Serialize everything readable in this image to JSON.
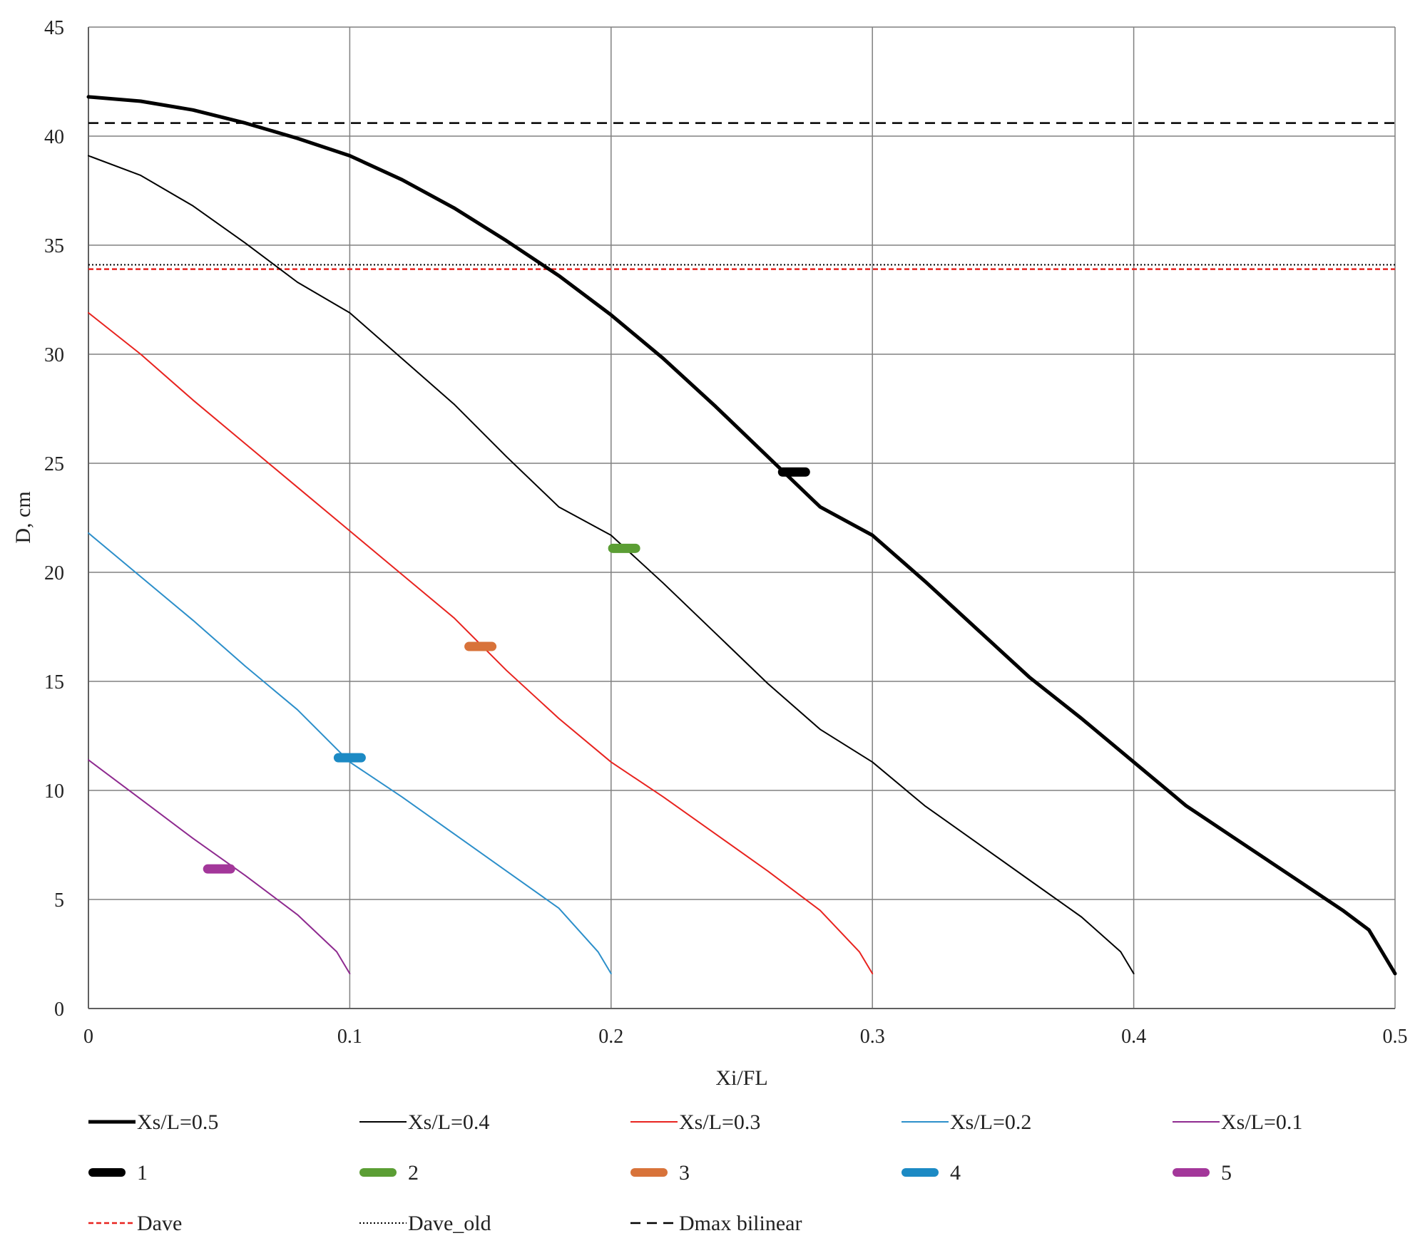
{
  "chart_data": {
    "type": "line",
    "title": "",
    "xlabel": "Xi/FL",
    "ylabel": "D, cm",
    "xlim": [
      0,
      0.5
    ],
    "ylim": [
      0,
      45
    ],
    "xticks": [
      "0",
      "0.1",
      "0.2",
      "0.3",
      "0.4",
      "0.5"
    ],
    "yticks": [
      "0",
      "5",
      "10",
      "15",
      "20",
      "25",
      "30",
      "35",
      "40",
      "45"
    ],
    "grid": true,
    "legend_position": "bottom",
    "series": [
      {
        "name": "Xs/L=0.5",
        "color": "#000000",
        "style": "solid-thick",
        "x": [
          0,
          0.02,
          0.04,
          0.06,
          0.08,
          0.1,
          0.12,
          0.14,
          0.16,
          0.18,
          0.2,
          0.22,
          0.24,
          0.26,
          0.28,
          0.3,
          0.32,
          0.34,
          0.36,
          0.38,
          0.4,
          0.42,
          0.44,
          0.46,
          0.48,
          0.49,
          0.495,
          0.5
        ],
        "y": [
          41.8,
          41.6,
          41.2,
          40.6,
          39.9,
          39.1,
          38.0,
          36.7,
          35.2,
          33.6,
          31.8,
          29.8,
          27.6,
          25.3,
          23.0,
          21.7,
          19.6,
          17.4,
          15.2,
          13.3,
          11.3,
          9.3,
          7.7,
          6.1,
          4.5,
          3.6,
          2.6,
          1.6
        ]
      },
      {
        "name": "Xs/L=0.4",
        "color": "#000000",
        "style": "solid",
        "x": [
          0,
          0.02,
          0.04,
          0.06,
          0.08,
          0.1,
          0.12,
          0.14,
          0.16,
          0.18,
          0.2,
          0.22,
          0.24,
          0.26,
          0.28,
          0.3,
          0.32,
          0.34,
          0.36,
          0.38,
          0.395,
          0.4
        ],
        "y": [
          39.1,
          38.2,
          36.8,
          35.1,
          33.3,
          31.9,
          29.8,
          27.7,
          25.3,
          23.0,
          21.7,
          19.5,
          17.2,
          14.9,
          12.8,
          11.3,
          9.3,
          7.6,
          5.9,
          4.2,
          2.6,
          1.6
        ]
      },
      {
        "name": "Xs/L=0.3",
        "color": "#e8231f",
        "style": "solid",
        "x": [
          0,
          0.02,
          0.04,
          0.06,
          0.08,
          0.1,
          0.12,
          0.14,
          0.16,
          0.18,
          0.2,
          0.22,
          0.24,
          0.26,
          0.28,
          0.295,
          0.3
        ],
        "y": [
          31.9,
          30.0,
          27.9,
          25.9,
          23.9,
          21.9,
          19.9,
          17.9,
          15.5,
          13.3,
          11.3,
          9.7,
          8.0,
          6.3,
          4.5,
          2.6,
          1.6
        ]
      },
      {
        "name": "Xs/L=0.2",
        "color": "#2c8fca",
        "style": "solid",
        "x": [
          0,
          0.02,
          0.04,
          0.06,
          0.08,
          0.1,
          0.12,
          0.14,
          0.16,
          0.18,
          0.195,
          0.2
        ],
        "y": [
          21.8,
          19.8,
          17.8,
          15.7,
          13.7,
          11.3,
          9.7,
          8.0,
          6.3,
          4.6,
          2.6,
          1.6
        ]
      },
      {
        "name": "Xs/L=0.1",
        "color": "#8e2a8f",
        "style": "solid",
        "x": [
          0,
          0.02,
          0.04,
          0.06,
          0.08,
          0.095,
          0.1
        ],
        "y": [
          11.4,
          9.6,
          7.8,
          6.1,
          4.3,
          2.6,
          1.6
        ]
      }
    ],
    "markers": [
      {
        "name": "1",
        "color": "#000000",
        "x": 0.27,
        "y": 24.6
      },
      {
        "name": "2",
        "color": "#5b9e34",
        "x": 0.205,
        "y": 21.1
      },
      {
        "name": "3",
        "color": "#d8733a",
        "x": 0.15,
        "y": 16.6
      },
      {
        "name": "4",
        "color": "#1c8ac4",
        "x": 0.1,
        "y": 11.5
      },
      {
        "name": "5",
        "color": "#a3379a",
        "x": 0.05,
        "y": 6.4
      }
    ],
    "hlines": [
      {
        "name": "Dave",
        "color": "#e8231f",
        "style": "dashed-fine",
        "y": 33.9
      },
      {
        "name": "Dave_old",
        "color": "#000000",
        "style": "dotted",
        "y": 34.1
      },
      {
        "name": "Dmax bilinear",
        "color": "#000000",
        "style": "dashed",
        "y": 40.6
      }
    ]
  }
}
